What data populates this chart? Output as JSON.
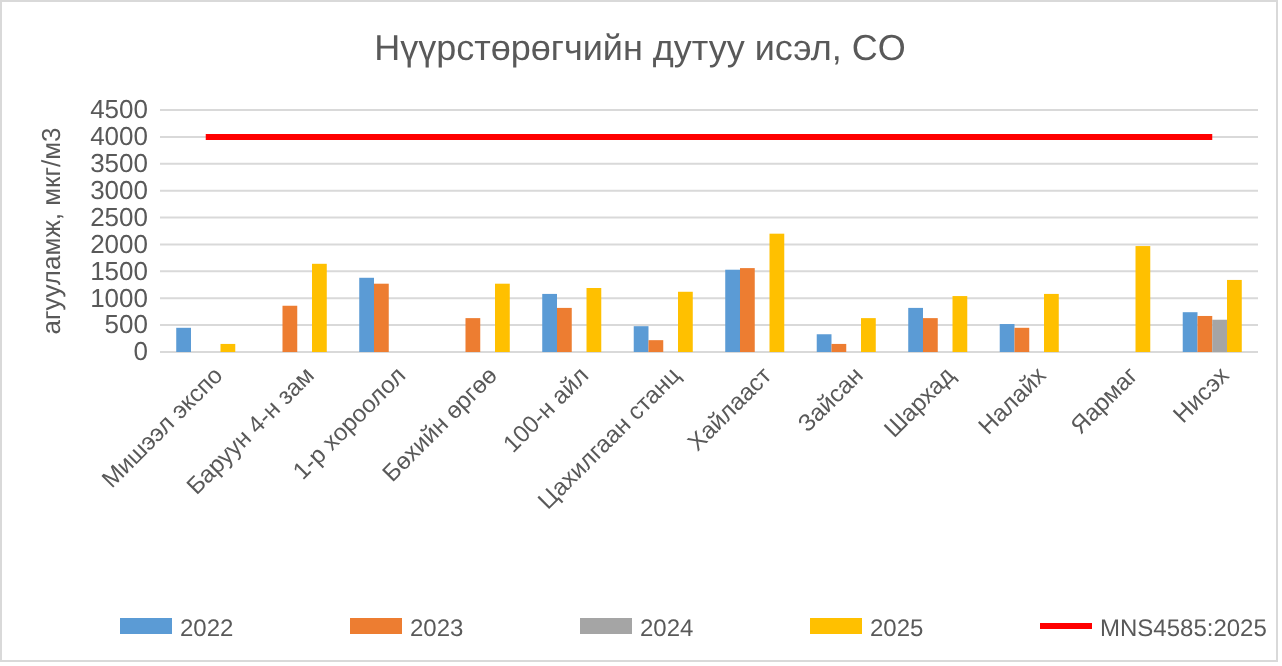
{
  "chart_data": {
    "type": "bar",
    "title": "Нүүрстөрөгчийн дутуу исэл, CO",
    "ylabel": "агууламж, мкг/м3",
    "categories": [
      "Мишээл экспо",
      "Баруун 4-н зам",
      "1-р хороолол",
      "Бөхийн өргөө",
      "100-н айл",
      "Цахилгаан станц",
      "Хайлааст",
      "Зайсан",
      "Шархад",
      "Налайх",
      "Яармаг",
      "Нисэх"
    ],
    "series": [
      {
        "name": "2022",
        "color": "#5b9bd5",
        "values": [
          450,
          null,
          1380,
          null,
          1080,
          480,
          1530,
          330,
          820,
          520,
          null,
          740
        ]
      },
      {
        "name": "2023",
        "color": "#ed7d31",
        "values": [
          null,
          860,
          1270,
          630,
          820,
          220,
          1560,
          150,
          630,
          450,
          null,
          670
        ]
      },
      {
        "name": "2024",
        "color": "#a5a5a5",
        "values": [
          null,
          null,
          null,
          null,
          null,
          null,
          null,
          null,
          null,
          null,
          null,
          600
        ]
      },
      {
        "name": "2025",
        "color": "#ffc000",
        "values": [
          150,
          1640,
          null,
          1270,
          1190,
          1120,
          2200,
          630,
          1040,
          1080,
          1970,
          1340
        ]
      },
      {
        "name": "MNS4585:2025",
        "type": "line",
        "color": "#ff0000",
        "values": [
          4000,
          4000,
          4000,
          4000,
          4000,
          4000,
          4000,
          4000,
          4000,
          4000,
          4000,
          4000
        ]
      }
    ],
    "ylim": [
      0,
      4500
    ],
    "yticks": [
      0,
      500,
      1000,
      1500,
      2000,
      2500,
      3000,
      3500,
      4000,
      4500
    ],
    "grid": "y",
    "legend": "bottom",
    "marker": "none"
  }
}
